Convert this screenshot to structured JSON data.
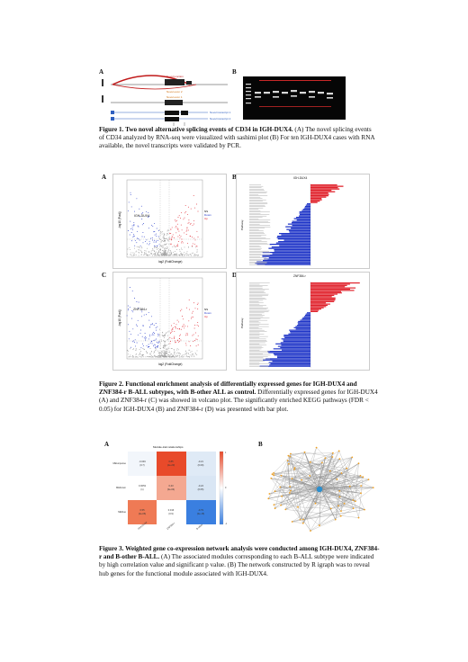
{
  "figure1": {
    "panel_a": "A",
    "panel_b": "B",
    "caption_title": "Figure 1. Two novel alternative splicing events of CD34 in IGH-DUX4.",
    "caption_body": " (A) The novel splicing events of CD34 analyzed by RNA-seq were visualized with sashimi plot (B) For ten IGH-DUX4 cases with RNA available, the novel transcripts were validated by PCR."
  },
  "figure2": {
    "panel_a": "A",
    "panel_b": "B",
    "panel_c": "C",
    "panel_d": "D",
    "volcano_a_label": "IGH-DUX4",
    "volcano_c_label": "ZNF384-r",
    "bar_b_title": "IGH-DUX4",
    "bar_d_title": "ZNF384-r",
    "caption_title": "Figure 2. Functional enrichment analysis of differentially expressed genes for IGH-DUX4 and ZNF384-r B-ALL subtypes, with B-other ALL as control.",
    "caption_body": " Differentially expressed genes for IGH-DUX4 (A) and ZNF384-r (C) was showed in volcano plot. The significantly enriched KEGG pathways (FDR < 0.05) for IGH-DUX4 (B) and ZNF384-r (D) was presented with bar plot."
  },
  "figure3": {
    "panel_a": "A",
    "panel_b": "B",
    "heatmap_title": "Module-trait relationships",
    "caption_title": "Figure 3. Weighted gene co-expression network analysis were conducted among IGH-DUX4, ZNF384-r and B-other B-ALL.",
    "caption_body": " (A) The associated modules corresponding to each B-ALL subtype were indicated by high correlation value and significant p value. (B) The network constructed by R igraph was to reveal hub genes for the functional module associated with IGH-DUX4."
  },
  "colors": {
    "up": "#e0202a",
    "down": "#2036c8",
    "heat_hot": "#e84a2a",
    "heat_cold": "#3a7fe0"
  }
}
